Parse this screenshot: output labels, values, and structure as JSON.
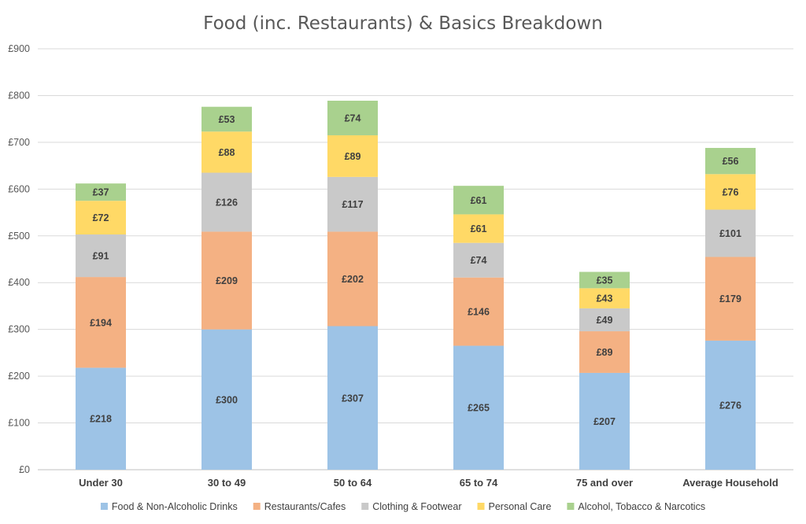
{
  "chart_data": {
    "type": "bar",
    "stacked": true,
    "title": "Food (inc. Restaurants) & Basics Breakdown",
    "xlabel": "",
    "ylabel": "",
    "ylim": [
      0,
      900
    ],
    "y_ticks": [
      "£0",
      "£100",
      "£200",
      "£300",
      "£400",
      "£500",
      "£600",
      "£700",
      "£800",
      "£900"
    ],
    "y_tick_values": [
      0,
      100,
      200,
      300,
      400,
      500,
      600,
      700,
      800,
      900
    ],
    "grid": true,
    "legend_position": "bottom",
    "categories": [
      "Under 30",
      "30 to 49",
      "50 to 64",
      "65 to 74",
      "75 and over",
      "Average Household"
    ],
    "series": [
      {
        "name": "Food & Non-Alcoholic Drinks",
        "color": "#9dc3e6",
        "values": [
          218,
          300,
          307,
          265,
          207,
          276
        ],
        "labels": [
          "£218",
          "£300",
          "£307",
          "£265",
          "£207",
          "£276"
        ]
      },
      {
        "name": "Restaurants/Cafes",
        "color": "#f4b183",
        "values": [
          194,
          209,
          202,
          146,
          89,
          179
        ],
        "labels": [
          "£194",
          "£209",
          "£202",
          "£146",
          "£89",
          "£179"
        ]
      },
      {
        "name": "Clothing & Footwear",
        "color": "#c9c9c9",
        "values": [
          91,
          126,
          117,
          74,
          49,
          101
        ],
        "labels": [
          "£91",
          "£126",
          "£117",
          "£74",
          "£49",
          "£101"
        ]
      },
      {
        "name": "Personal Care",
        "color": "#ffd966",
        "values": [
          72,
          88,
          89,
          61,
          43,
          76
        ],
        "labels": [
          "£72",
          "£88",
          "£89",
          "£61",
          "£43",
          "£76"
        ]
      },
      {
        "name": "Alcohol, Tobacco & Narcotics",
        "color": "#a9d18e",
        "values": [
          37,
          53,
          74,
          61,
          35,
          56
        ],
        "labels": [
          "£37",
          "£53",
          "£74",
          "£61",
          "£35",
          "£56"
        ]
      }
    ]
  }
}
